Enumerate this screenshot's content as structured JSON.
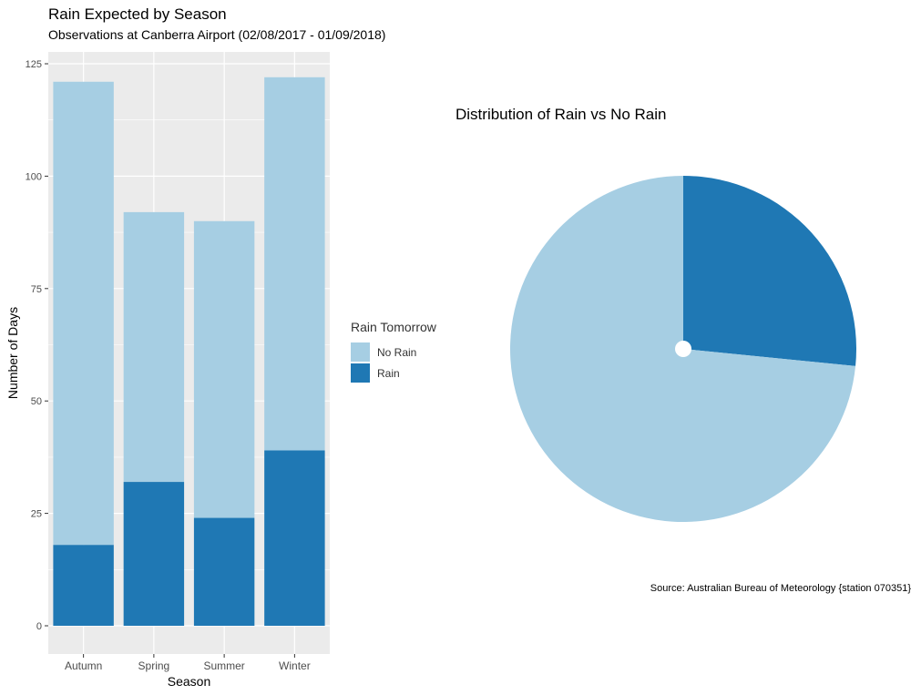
{
  "colors": {
    "no_rain": "#a6cee3",
    "rain": "#1f78b4",
    "panel_bg": "#ebebeb",
    "grid": "#ffffff"
  },
  "chart_data": [
    {
      "type": "bar",
      "stacked": true,
      "title": "Rain Expected by Season",
      "subtitle": "Observations at Canberra Airport (02/08/2017 - 01/09/2018)",
      "xlabel": "Season",
      "ylabel": "Number of Days",
      "categories": [
        "Autumn",
        "Spring",
        "Summer",
        "Winter"
      ],
      "series": [
        {
          "name": "No Rain",
          "values": [
            103,
            60,
            66,
            83
          ]
        },
        {
          "name": "Rain",
          "values": [
            18,
            32,
            24,
            39
          ]
        }
      ],
      "yticks": [
        0,
        25,
        50,
        75,
        100,
        125
      ],
      "ylim": [
        0,
        128
      ],
      "grid": true
    },
    {
      "type": "pie",
      "title": "Distribution of Rain vs No Rain",
      "slices": [
        {
          "name": "Rain",
          "value": 113
        },
        {
          "name": "No Rain",
          "value": 312
        }
      ]
    }
  ],
  "legend": {
    "title": "Rain Tomorrow",
    "placement": "center-right",
    "items": [
      {
        "label": "No Rain",
        "color": "#a6cee3"
      },
      {
        "label": "Rain",
        "color": "#1f78b4"
      }
    ]
  },
  "caption": "Source: Australian Bureau of Meteorology {station 070351}"
}
